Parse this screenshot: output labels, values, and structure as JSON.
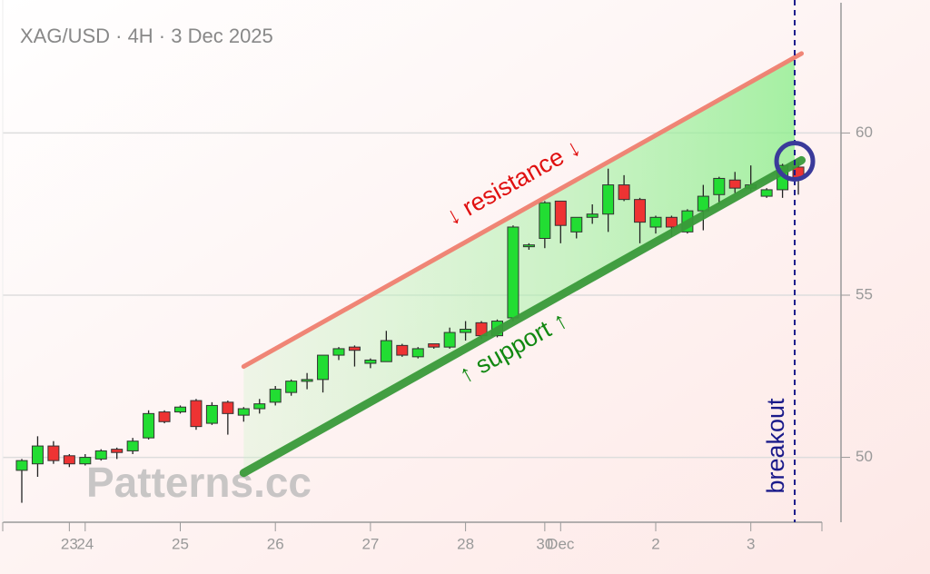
{
  "chart_data": {
    "type": "candlestick",
    "title": "XAG/USD · 4H · 3 Dec 2025",
    "watermark": "Patterns.cc",
    "categories": [
      null,
      null,
      null,
      "23",
      "24",
      null,
      null,
      null,
      null,
      null,
      "25",
      null,
      null,
      null,
      null,
      null,
      "26",
      null,
      null,
      null,
      null,
      null,
      "27",
      null,
      null,
      null,
      null,
      null,
      "28",
      null,
      null,
      null,
      null,
      "30",
      "Dec",
      null,
      null,
      null,
      null,
      null,
      "2",
      null,
      null,
      null,
      null,
      null,
      "3",
      null,
      null,
      null
    ],
    "open": [
      49.6,
      49.8,
      50.35,
      50.05,
      49.8,
      49.95,
      50.25,
      50.2,
      50.6,
      51.4,
      51.4,
      51.75,
      51.05,
      51.7,
      51.3,
      51.5,
      51.7,
      52.0,
      52.35,
      52.4,
      53.15,
      53.4,
      52.9,
      52.95,
      53.45,
      53.1,
      53.5,
      53.4,
      53.85,
      54.15,
      53.75,
      54.3,
      56.5,
      56.75,
      57.9,
      56.95,
      57.4,
      57.5,
      58.4,
      57.95,
      57.1,
      57.4,
      56.95,
      57.6,
      58.1,
      58.55,
      58.3,
      58.05,
      58.25,
      58.95
    ],
    "high": [
      49.95,
      50.65,
      50.5,
      50.1,
      50.1,
      50.25,
      50.3,
      50.6,
      51.45,
      51.45,
      51.6,
      51.8,
      51.7,
      51.75,
      51.55,
      51.8,
      52.2,
      52.4,
      52.6,
      53.15,
      53.4,
      53.45,
      53.05,
      53.9,
      53.5,
      53.4,
      53.5,
      54.0,
      54.2,
      54.2,
      54.25,
      57.15,
      56.6,
      57.9,
      57.9,
      57.4,
      57.8,
      58.9,
      58.7,
      58.0,
      57.45,
      57.45,
      57.65,
      58.4,
      58.65,
      58.8,
      59.0,
      58.3,
      59.05,
      59.1
    ],
    "low": [
      48.6,
      49.4,
      49.8,
      49.7,
      49.75,
      49.9,
      49.95,
      50.1,
      50.55,
      51.05,
      51.35,
      50.85,
      51.0,
      50.7,
      51.1,
      51.35,
      51.6,
      51.9,
      52.1,
      52.0,
      53.0,
      52.8,
      52.75,
      52.95,
      53.1,
      53.05,
      53.35,
      53.35,
      53.6,
      53.65,
      53.7,
      54.2,
      56.4,
      56.45,
      56.6,
      56.75,
      57.2,
      56.95,
      57.9,
      56.6,
      56.9,
      56.8,
      56.9,
      57.0,
      57.8,
      58.15,
      58.2,
      58.0,
      58.0,
      58.1
    ],
    "close": [
      49.9,
      50.35,
      49.9,
      49.8,
      50.0,
      50.2,
      50.15,
      50.5,
      51.35,
      51.1,
      51.55,
      50.95,
      51.6,
      51.35,
      51.5,
      51.65,
      52.1,
      52.35,
      52.4,
      53.15,
      53.35,
      53.3,
      53.0,
      53.6,
      53.15,
      53.35,
      53.4,
      53.85,
      53.95,
      53.75,
      54.2,
      57.1,
      56.55,
      57.85,
      57.15,
      57.4,
      57.5,
      58.4,
      57.95,
      57.25,
      57.4,
      57.1,
      57.6,
      58.05,
      58.6,
      58.3,
      58.4,
      58.25,
      59.0,
      58.6
    ],
    "up_color": "#22dd33",
    "down_color": "#ee3333",
    "ylim": [
      48,
      64.1
    ],
    "yticks": [
      50,
      55,
      60
    ],
    "grid": true,
    "resistance": {
      "label": "↓ resistance ↓",
      "x": [
        14,
        49.2
      ],
      "values": [
        52.8,
        62.45
      ],
      "color": "#f08070"
    },
    "support": {
      "label": "↑ support ↑",
      "x": [
        14,
        49.2
      ],
      "values": [
        49.52,
        59.16
      ],
      "color": "#3a9a3a"
    },
    "breakout": {
      "label": "breakout",
      "x": 48.77,
      "value": 59.13,
      "color": "#1a1a8a"
    }
  }
}
